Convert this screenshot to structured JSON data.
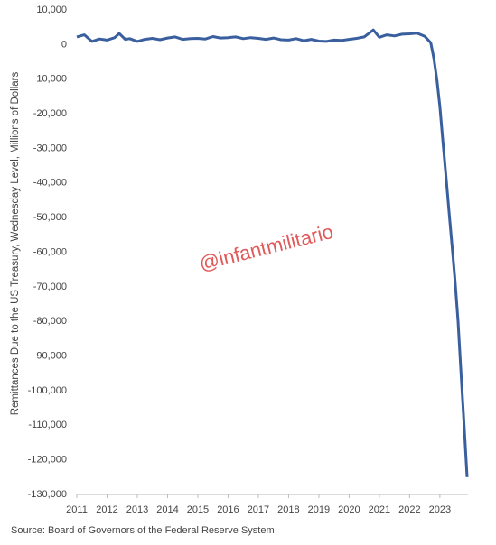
{
  "chart_data": {
    "type": "line",
    "y_label": "Remittances Due to the US Treasury, Wednesday Level, Millions of Dollars",
    "source": "Source: Board of Governors of the Federal Reserve System",
    "annotation": "@infantmilitario",
    "x": [
      2011,
      2011.25,
      2011.5,
      2011.75,
      2012,
      2012.25,
      2012.4,
      2012.6,
      2012.75,
      2013,
      2013.25,
      2013.5,
      2013.75,
      2014,
      2014.25,
      2014.5,
      2014.75,
      2015,
      2015.25,
      2015.5,
      2015.75,
      2016,
      2016.25,
      2016.5,
      2016.75,
      2017,
      2017.25,
      2017.5,
      2017.75,
      2018,
      2018.25,
      2018.5,
      2018.75,
      2019,
      2019.25,
      2019.5,
      2019.75,
      2020,
      2020.25,
      2020.5,
      2020.8,
      2021,
      2021.25,
      2021.5,
      2021.75,
      2022,
      2022.25,
      2022.5,
      2022.7,
      2022.8,
      2022.9,
      2023,
      2023.1,
      2023.2,
      2023.3,
      2023.4,
      2023.5,
      2023.6,
      2023.7,
      2023.8,
      2023.9
    ],
    "series": [
      {
        "name": "Remittances",
        "color": "#3a5f9e",
        "values": [
          2200,
          2800,
          900,
          1600,
          1300,
          2000,
          3200,
          1500,
          1700,
          900,
          1500,
          1800,
          1400,
          1900,
          2200,
          1500,
          1700,
          1800,
          1600,
          2300,
          1900,
          2000,
          2200,
          1700,
          2000,
          1800,
          1500,
          1900,
          1400,
          1300,
          1700,
          1100,
          1500,
          1000,
          900,
          1300,
          1200,
          1500,
          1800,
          2200,
          4200,
          2100,
          2800,
          2500,
          3000,
          3100,
          3300,
          2400,
          500,
          -4000,
          -10000,
          -18000,
          -28000,
          -38000,
          -48000,
          -58000,
          -68000,
          -80000,
          -95000,
          -110000,
          -125000
        ]
      }
    ],
    "xlim": [
      2011,
      2023.9
    ],
    "xticks": [
      2011,
      2012,
      2013,
      2014,
      2015,
      2016,
      2017,
      2018,
      2019,
      2020,
      2021,
      2022,
      2023
    ],
    "ylim": [
      -130000,
      10000
    ],
    "yticks": [
      {
        "value": -130000,
        "label": "-130,000"
      },
      {
        "value": -120000,
        "label": "-120,000"
      },
      {
        "value": -110000,
        "label": "-110,000"
      },
      {
        "value": -100000,
        "label": "-100,000"
      },
      {
        "value": -90000,
        "label": "-90,000"
      },
      {
        "value": -80000,
        "label": "-80,000"
      },
      {
        "value": -70000,
        "label": "-70,000"
      },
      {
        "value": -60000,
        "label": "-60,000"
      },
      {
        "value": -50000,
        "label": "-50,000"
      },
      {
        "value": -40000,
        "label": "-40,000"
      },
      {
        "value": -30000,
        "label": "-30,000"
      },
      {
        "value": -20000,
        "label": "-20,000"
      },
      {
        "value": -10000,
        "label": "-10,000"
      },
      0,
      {
        "value": 10000,
        "label": "10,000"
      }
    ],
    "grid": false
  }
}
